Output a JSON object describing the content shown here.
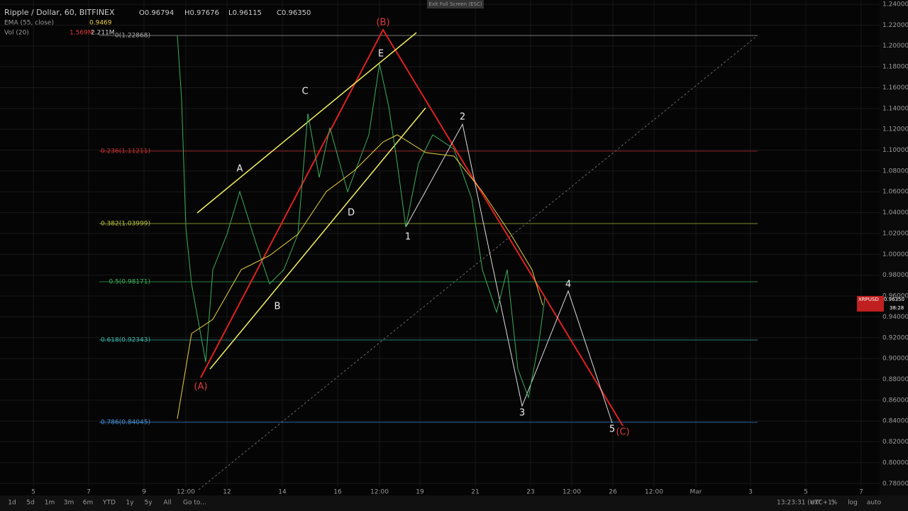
{
  "header": {
    "symbol": "Ripple / Dollar, 60, BITFINEX",
    "ohlc": [
      "O0.96794",
      "H0.97676",
      "L0.96115",
      "C0.96350"
    ],
    "ema_label": "EMA (55, close)",
    "ema_value": "0.9469",
    "vol_label": "Vol (20)",
    "vol_values": [
      "1.569M",
      "2.211M"
    ]
  },
  "fullscreen_hint": "Exit Full Screen (ESC)",
  "price_axis": [
    "1.24000",
    "1.22000",
    "1.20000",
    "1.18000",
    "1.16000",
    "1.14000",
    "1.12000",
    "1.10000",
    "1.08000",
    "1.06000",
    "1.04000",
    "1.02000",
    "1.00000",
    "0.98000",
    "0.96000",
    "0.94000",
    "0.92000",
    "0.90000",
    "0.88000",
    "0.86000",
    "0.84000",
    "0.82000",
    "0.80000",
    "0.78000"
  ],
  "time_axis": [
    "5",
    "7",
    "9",
    "12:00",
    "12",
    "14",
    "16",
    "12:00",
    "19",
    "21",
    "23",
    "12:00",
    "26",
    "12:00",
    "Mar",
    "3",
    "5",
    "7"
  ],
  "fib_levels": [
    "0(1.22868)",
    "0.236(1.11211)",
    "0.382(1.03999)",
    "0.5(0.98171)",
    "0.618(0.92343)",
    "0.786(0.84045)"
  ],
  "wave_labels": [
    "(B)",
    "E",
    "C",
    "A",
    "D",
    "B",
    "(A)",
    "1",
    "2",
    "3",
    "4",
    "5",
    "(C)"
  ],
  "price_tag": {
    "symbol": "XRPUSD",
    "price": "0.96350",
    "countdown": "38:28"
  },
  "toolbar": {
    "ranges": [
      "1d",
      "5d",
      "1m",
      "3m",
      "6m",
      "YTD",
      "1y",
      "5y",
      "All"
    ],
    "goto": "Go to...",
    "clock": "13:23:31 (UTC+1)",
    "options": [
      "ext",
      "%",
      "log",
      "auto"
    ]
  }
}
